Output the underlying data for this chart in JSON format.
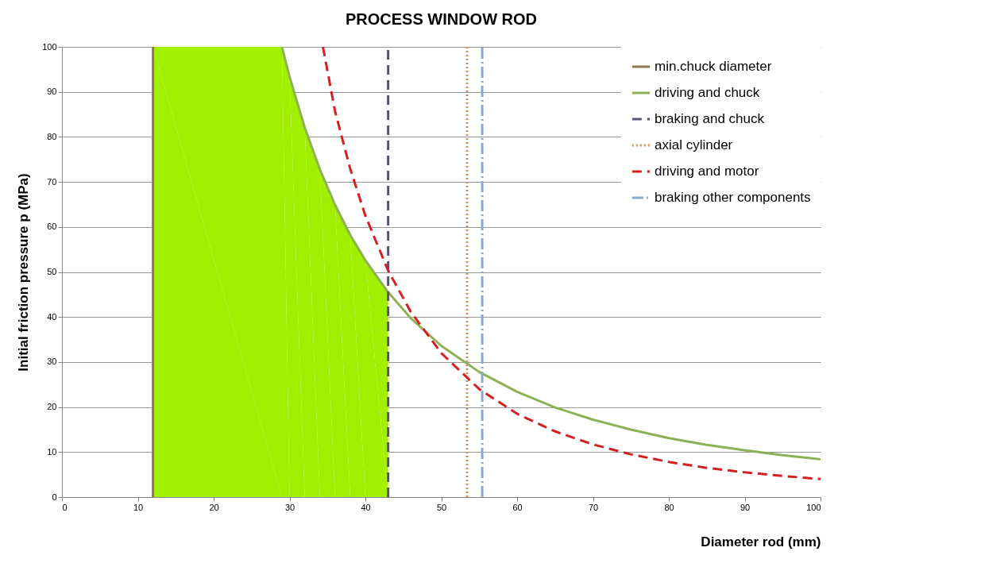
{
  "chart_data": {
    "type": "line",
    "title": "PROCESS WINDOW ROD",
    "xlabel": "Diameter rod (mm)",
    "ylabel": "Initial friction pressure p (MPa)",
    "xlim": [
      0,
      100
    ],
    "xticks": [
      0,
      10,
      20,
      30,
      40,
      50,
      60,
      70,
      80,
      90,
      100
    ],
    "ylim": [
      0,
      100
    ],
    "yticks": [
      0,
      10,
      20,
      30,
      40,
      50,
      60,
      70,
      80,
      90,
      100
    ],
    "grid": "y",
    "legend": "top right",
    "marker": "none",
    "series": [
      {
        "type": "area",
        "color": "#a2ef00",
        "x": [
          12,
          29,
          30,
          32,
          34,
          36,
          38,
          40,
          43
        ],
        "values": [
          100,
          100,
          93.4,
          82.1,
          72.8,
          64.9,
          58.2,
          52.6,
          45.5
        ]
      },
      {
        "name": "min.chuck diameter",
        "color": "#8c7a55",
        "line_style": "solid",
        "x": [
          12,
          12
        ],
        "values": [
          0,
          100
        ]
      },
      {
        "name": "driving and chuck",
        "color": "#8db155",
        "line_style": "solid",
        "x": [
          29,
          30,
          32,
          34,
          36,
          38,
          40,
          43,
          46,
          50,
          55,
          60,
          65,
          70,
          75,
          80,
          85,
          90,
          95,
          100
        ],
        "values": [
          100,
          93.4,
          82.1,
          72.8,
          64.9,
          58.2,
          52.6,
          45.5,
          39.7,
          33.6,
          27.8,
          23.4,
          19.9,
          17.2,
          15,
          13.1,
          11.6,
          10.4,
          9.3,
          8.4
        ]
      },
      {
        "name": "braking and chuck",
        "color": "#5a5078",
        "line_style": "dashed",
        "x": [
          43,
          43
        ],
        "values": [
          0,
          100
        ]
      },
      {
        "name": "axial cylinder",
        "color": "#d09060",
        "line_style": "dotted",
        "x": [
          53.4,
          53.4
        ],
        "values": [
          0,
          100
        ]
      },
      {
        "name": "driving and motor",
        "color": "#d42020",
        "line_style": "dashed",
        "x": [
          34.4,
          36,
          38,
          40,
          43,
          46,
          50,
          55,
          60,
          65,
          70,
          75,
          80,
          85,
          90,
          95,
          100
        ],
        "values": [
          100,
          85.7,
          72.9,
          62.5,
          50.3,
          41.1,
          32,
          24,
          18.5,
          14.6,
          11.7,
          9.5,
          7.8,
          6.5,
          5.5,
          4.7,
          4
        ]
      },
      {
        "name": "braking other components",
        "color": "#8aa8c8",
        "line_style": "dashdot",
        "x": [
          55.4,
          55.4
        ],
        "values": [
          0,
          100
        ]
      }
    ]
  }
}
